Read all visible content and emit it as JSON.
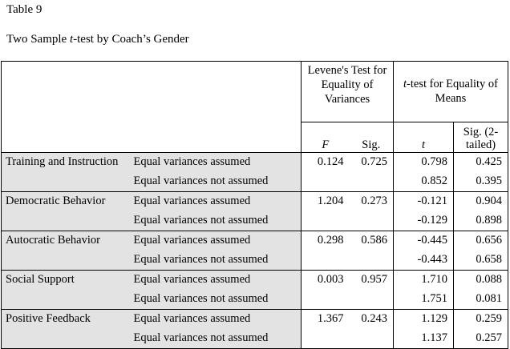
{
  "caption": {
    "table_number": "Table 9",
    "title_prefix": "Two Sample ",
    "title_t": "t",
    "title_suffix": "-test by Coach’s Gender"
  },
  "header": {
    "levene_group": "Levene's Test for Equality of Variances",
    "ttest_group_t": "t",
    "ttest_group_rest": "-test for Equality of Means",
    "col_F": "F",
    "col_sig": "Sig.",
    "col_t": "t",
    "col_sig2": "Sig. (2-tailed)"
  },
  "rows": [
    {
      "variable": "Training and Instruction",
      "assumption": "Equal variances assumed",
      "F": "0.124",
      "sig": "0.725",
      "t": "0.798",
      "sig2": "0.425"
    },
    {
      "variable": "",
      "assumption": "Equal variances not assumed",
      "F": "",
      "sig": "",
      "t": "0.852",
      "sig2": "0.395"
    },
    {
      "variable": "Democratic Behavior",
      "assumption": "Equal variances assumed",
      "F": "1.204",
      "sig": "0.273",
      "t": "-0.121",
      "sig2": "0.904"
    },
    {
      "variable": "",
      "assumption": "Equal variances not assumed",
      "F": "",
      "sig": "",
      "t": "-0.129",
      "sig2": "0.898"
    },
    {
      "variable": "Autocratic Behavior",
      "assumption": "Equal variances assumed",
      "F": "0.298",
      "sig": "0.586",
      "t": "-0.445",
      "sig2": "0.656"
    },
    {
      "variable": "",
      "assumption": "Equal variances not assumed",
      "F": "",
      "sig": "",
      "t": "-0.443",
      "sig2": "0.658"
    },
    {
      "variable": "Social Support",
      "assumption": "Equal variances assumed",
      "F": "0.003",
      "sig": "0.957",
      "t": "1.710",
      "sig2": "0.088"
    },
    {
      "variable": "",
      "assumption": "Equal variances not assumed",
      "F": "",
      "sig": "",
      "t": "1.751",
      "sig2": "0.081"
    },
    {
      "variable": "Positive Feedback",
      "assumption": "Equal variances assumed",
      "F": "1.367",
      "sig": "0.243",
      "t": "1.129",
      "sig2": "0.259"
    },
    {
      "variable": "",
      "assumption": "Equal variances not assumed",
      "F": "",
      "sig": "",
      "t": "1.137",
      "sig2": "0.257"
    }
  ]
}
